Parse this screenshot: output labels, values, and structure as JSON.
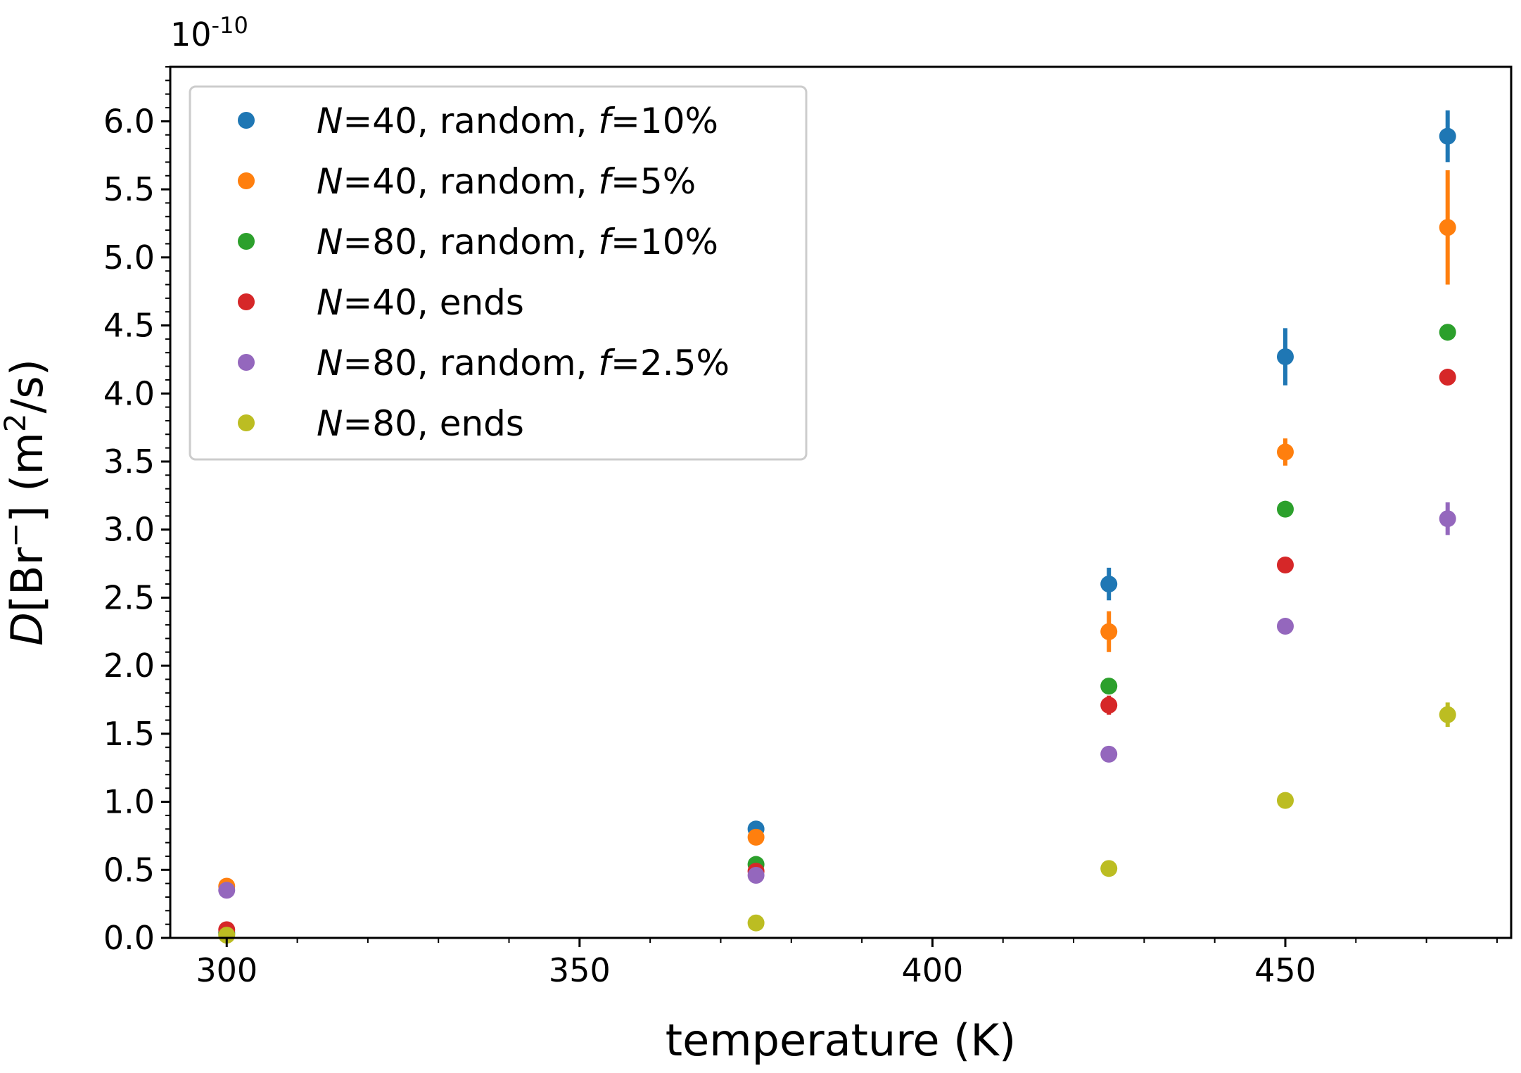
{
  "chart_data": {
    "type": "scatter",
    "title": "",
    "xlabel": "temperature (K)",
    "ylabel": {
      "italic": "D",
      "rest": "[Br",
      "sup_ion": "−",
      "close": "] (m",
      "sup_unit": "2",
      "tail": "/s)"
    },
    "y_multiplier": {
      "base": "10",
      "exponent": "-10"
    },
    "xlim": [
      292,
      482
    ],
    "ylim": [
      0,
      6.4
    ],
    "x_ticks": [
      300,
      350,
      400,
      450
    ],
    "x_tick_labels": [
      "300",
      "350",
      "400",
      "450"
    ],
    "y_ticks": [
      0,
      0.5,
      1.0,
      1.5,
      2.0,
      2.5,
      3.0,
      3.5,
      4.0,
      4.5,
      5.0,
      5.5,
      6.0
    ],
    "y_tick_labels": [
      "0.0",
      "0.5",
      "1.0",
      "1.5",
      "2.0",
      "2.5",
      "3.0",
      "3.5",
      "4.0",
      "4.5",
      "5.0",
      "5.5",
      "6.0"
    ],
    "legend_position": "top-left",
    "series": [
      {
        "name": "N=40, random, f=10%",
        "label_parts": [
          [
            "N",
            true
          ],
          [
            "=40, random, ",
            false
          ],
          [
            "f",
            true
          ],
          [
            "=10%",
            false
          ]
        ],
        "color": "#1f77b4",
        "x": [
          300,
          375,
          425,
          450,
          473
        ],
        "y": [
          0.04,
          0.8,
          2.6,
          4.27,
          5.89
        ],
        "yerr": [
          0.01,
          0.03,
          0.12,
          0.21,
          0.19
        ]
      },
      {
        "name": "N=40, random, f=5%",
        "label_parts": [
          [
            "N",
            true
          ],
          [
            "=40, random, ",
            false
          ],
          [
            "f",
            true
          ],
          [
            "=5%",
            false
          ]
        ],
        "color": "#ff7f0e",
        "x": [
          300,
          375,
          425,
          450,
          473
        ],
        "y": [
          0.38,
          0.74,
          2.25,
          3.57,
          5.22
        ],
        "yerr": [
          0.01,
          0.03,
          0.15,
          0.1,
          0.42
        ]
      },
      {
        "name": "N=80, random, f=10%",
        "label_parts": [
          [
            "N",
            true
          ],
          [
            "=80, random, ",
            false
          ],
          [
            "f",
            true
          ],
          [
            "=10%",
            false
          ]
        ],
        "color": "#2ca02c",
        "x": [
          300,
          375,
          425,
          450,
          473
        ],
        "y": [
          0.03,
          0.54,
          1.85,
          3.15,
          4.45
        ],
        "yerr": [
          0.01,
          0.02,
          0.04,
          0.04,
          0.04
        ]
      },
      {
        "name": "N=40, ends",
        "label_parts": [
          [
            "N",
            true
          ],
          [
            "=40, ends",
            false
          ]
        ],
        "color": "#d62728",
        "x": [
          300,
          375,
          425,
          450,
          473
        ],
        "y": [
          0.06,
          0.49,
          1.71,
          2.74,
          4.12
        ],
        "yerr": [
          0.01,
          0.02,
          0.07,
          0.03,
          0.03
        ]
      },
      {
        "name": "N=80, random, f=2.5%",
        "label_parts": [
          [
            "N",
            true
          ],
          [
            "=80, random, ",
            false
          ],
          [
            "f",
            true
          ],
          [
            "=2.5%",
            false
          ]
        ],
        "color": "#9467bd",
        "x": [
          300,
          375,
          425,
          450,
          473
        ],
        "y": [
          0.35,
          0.46,
          1.35,
          2.29,
          3.08
        ],
        "yerr": [
          0.01,
          0.02,
          0.03,
          0.03,
          0.12
        ]
      },
      {
        "name": "N=80, ends",
        "label_parts": [
          [
            "N",
            true
          ],
          [
            "=80, ends",
            false
          ]
        ],
        "color": "#bcbd22",
        "x": [
          300,
          375,
          425,
          450,
          473
        ],
        "y": [
          0.02,
          0.11,
          0.51,
          1.01,
          1.64
        ],
        "yerr": [
          0.005,
          0.01,
          0.02,
          0.03,
          0.09
        ]
      }
    ]
  }
}
